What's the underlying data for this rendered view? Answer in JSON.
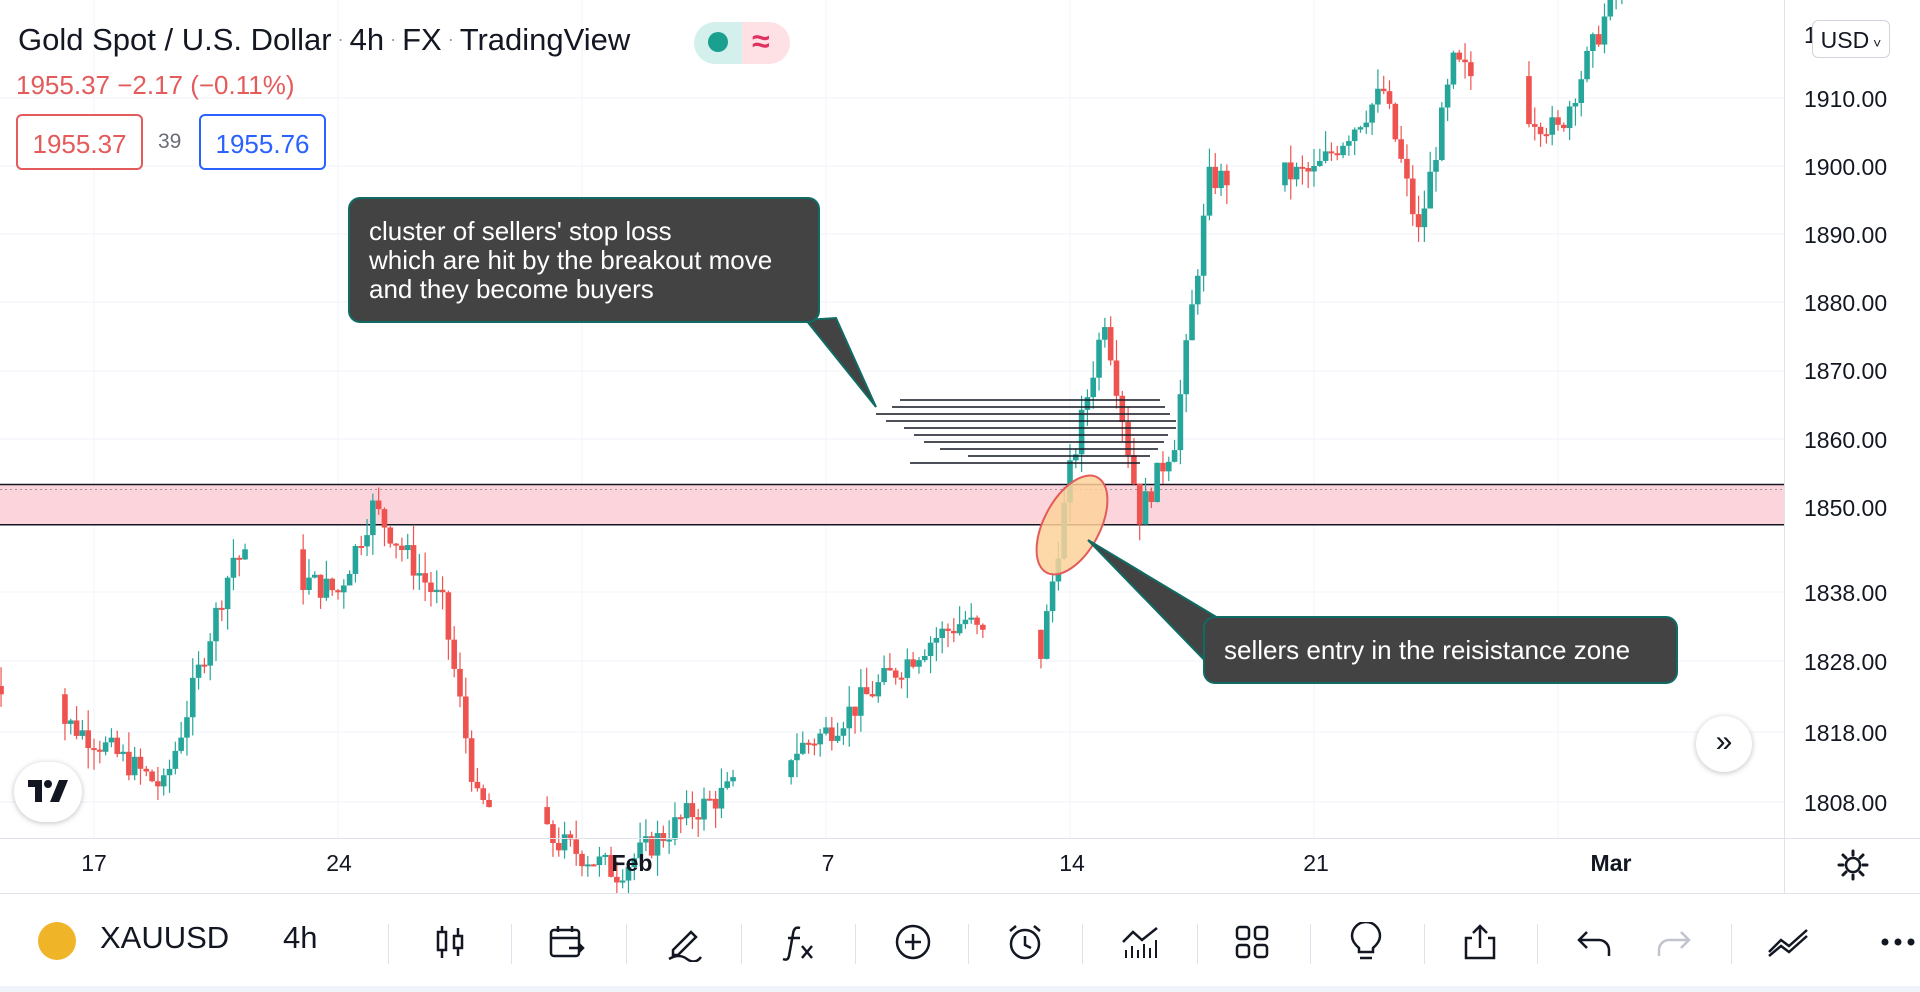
{
  "header": {
    "symbol_name": "Gold Spot / U.S. Dollar",
    "interval": "4h",
    "exchange": "FX",
    "source": "TradingView",
    "price_change": "1955.37  −2.17 (−0.11%)",
    "bid": "1955.37",
    "spread": "39",
    "ask": "1955.76"
  },
  "annotations": {
    "callout_cluster": "cluster of sellers' stop loss\nwhich are hit by the breakout move\nand they become buyers",
    "callout_entry": "sellers entry in the reisistance zone"
  },
  "price_axis": {
    "currency": "USD",
    "clipped_top_label": "1",
    "labels": [
      "1910.00",
      "1900.00",
      "1890.00",
      "1880.00",
      "1870.00",
      "1860.00",
      "1850.00",
      "1838.00",
      "1828.00",
      "1818.00",
      "1808.00"
    ]
  },
  "time_axis": {
    "labels": [
      "17",
      "24",
      "Feb",
      "7",
      "14",
      "21",
      "Mar"
    ],
    "bold_labels": [
      "Feb",
      "Mar"
    ]
  },
  "toolbar": {
    "symbol": "XAUUSD",
    "interval": "4h",
    "icons": [
      "candles-icon",
      "compare-calendar-icon",
      "draw-pen-icon",
      "indicators-fx-icon",
      "add-circle-icon",
      "alert-clock-icon",
      "financials-chart-icon",
      "layout-grid-icon",
      "ideas-lightbulb-icon",
      "share-icon",
      "undo-icon",
      "redo-icon",
      "trend-chart-icon",
      "more-icon"
    ]
  },
  "colors": {
    "up": "#26a69a",
    "down": "#ef5350",
    "resistance_zone": "#fcd4dc",
    "callout_bg": "#434343",
    "ellipse_fill": "#fdd19a"
  },
  "chart_data": {
    "type": "candlestick",
    "y_axis_ticks": [
      1808,
      1818,
      1828,
      1838,
      1850,
      1860,
      1870,
      1880,
      1890,
      1900,
      1910
    ],
    "x_axis_ticks": [
      "17",
      "24",
      "Feb",
      "7",
      "14",
      "21",
      "Mar"
    ],
    "resistance_zone": [
      1847.5,
      1853.3
    ],
    "stop_loss_cluster_range": [
      1857,
      1866
    ],
    "approx_path": [
      {
        "date": "Jan 14",
        "close": 1826
      },
      {
        "date": "Jan 17",
        "close": 1817
      },
      {
        "date": "Jan 19",
        "close": 1810
      },
      {
        "date": "Jan 21",
        "close": 1843
      },
      {
        "date": "Jan 24",
        "close": 1838
      },
      {
        "date": "Jan 25",
        "close": 1850
      },
      {
        "date": "Jan 27",
        "close": 1836
      },
      {
        "date": "Jan 28",
        "close": 1808
      },
      {
        "date": "Feb 1",
        "close": 1798
      },
      {
        "date": "Feb 3",
        "close": 1806
      },
      {
        "date": "Feb 7",
        "close": 1818
      },
      {
        "date": "Feb 10",
        "close": 1831
      },
      {
        "date": "Feb 11",
        "close": 1834
      },
      {
        "date": "Feb 13",
        "close": 1824
      },
      {
        "date": "Feb 14",
        "close": 1855
      },
      {
        "date": "Feb 15",
        "close": 1878
      },
      {
        "date": "Feb 16",
        "close": 1849
      },
      {
        "date": "Feb 17",
        "close": 1860
      },
      {
        "date": "Feb 18",
        "close": 1898
      },
      {
        "date": "Feb 21",
        "close": 1899
      },
      {
        "date": "Feb 23",
        "close": 1911
      },
      {
        "date": "Feb 24",
        "close": 1890
      },
      {
        "date": "Feb 25",
        "close": 1915
      },
      {
        "date": "Feb 28",
        "close": 1905
      },
      {
        "date": "Mar 2",
        "close": 1930
      }
    ]
  }
}
